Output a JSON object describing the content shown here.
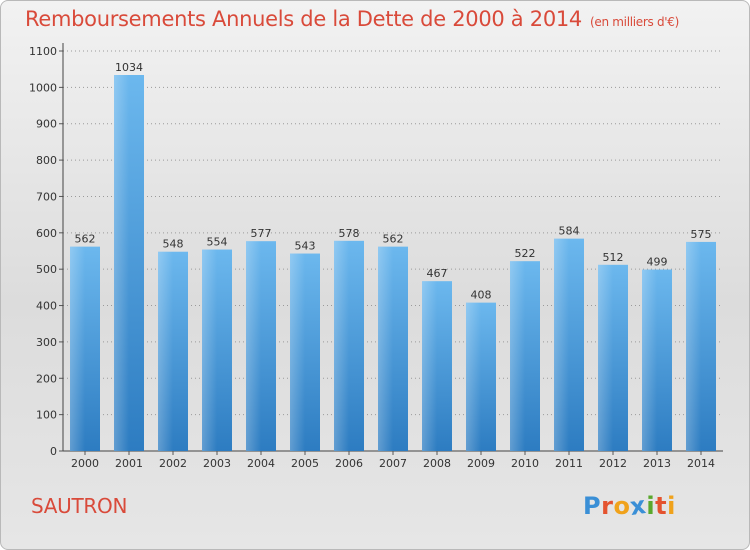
{
  "header": {
    "title": "Remboursements Annuels de la Dette de 2000 à 2014",
    "unit": "(en milliers d'€)"
  },
  "commune": "SAUTRON",
  "logo": {
    "text": "Proxiti",
    "letters": [
      {
        "char": "P",
        "color": "#3a8fd6"
      },
      {
        "char": "r",
        "color": "#e4532f"
      },
      {
        "char": "o",
        "color": "#f0a21b"
      },
      {
        "char": "x",
        "color": "#3a8fd6"
      },
      {
        "char": "i",
        "color": "#5aa82c"
      },
      {
        "char": "t",
        "color": "#e4532f"
      },
      {
        "char": "i",
        "color": "#f0a21b"
      }
    ]
  },
  "colors": {
    "title": "#d94a3a",
    "bar_light": "#6cb8ee",
    "bar_dark": "#2d7cc1",
    "grid": "#9a9a9a"
  },
  "chart_data": {
    "type": "bar",
    "categories": [
      "2000",
      "2001",
      "2002",
      "2003",
      "2004",
      "2005",
      "2006",
      "2007",
      "2008",
      "2009",
      "2010",
      "2011",
      "2012",
      "2013",
      "2014"
    ],
    "values": [
      562,
      1034,
      548,
      554,
      577,
      543,
      578,
      562,
      467,
      408,
      522,
      584,
      512,
      499,
      575
    ],
    "ylim": [
      0,
      1100
    ],
    "yticks": [
      0,
      100,
      200,
      300,
      400,
      500,
      600,
      700,
      800,
      900,
      1000,
      1100
    ],
    "grid": true,
    "data_labels": true
  }
}
